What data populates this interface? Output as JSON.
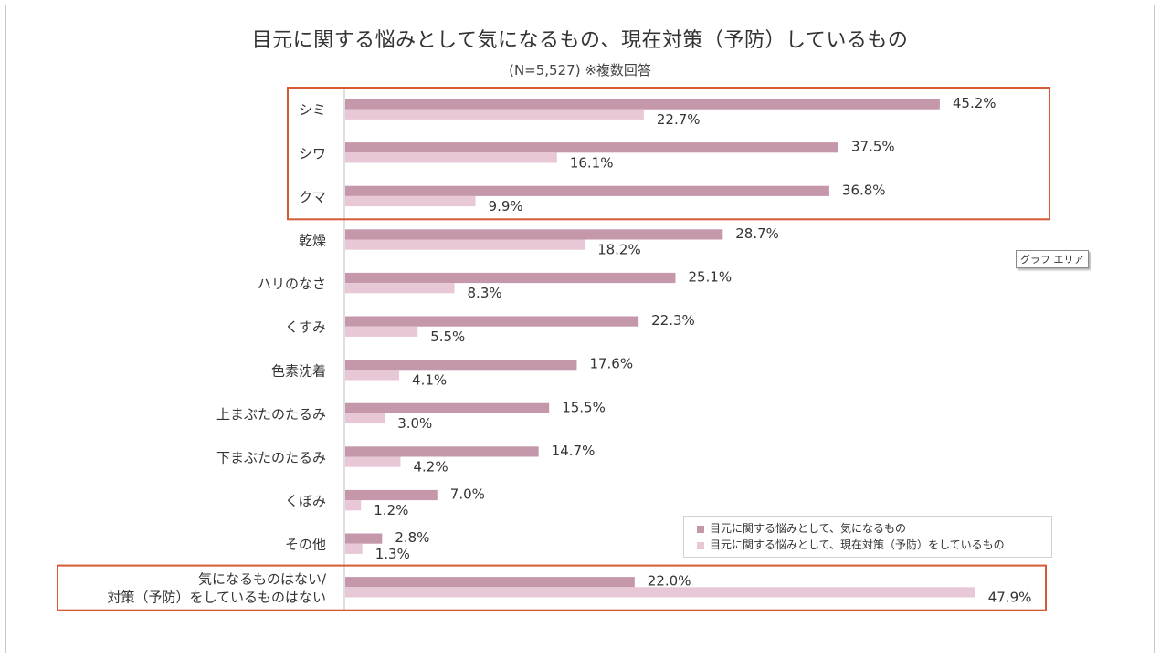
{
  "chart_data": {
    "type": "bar",
    "orientation": "horizontal",
    "title": "目元に関する悩みとして気になるもの、現在対策（予防）しているもの",
    "subtitle": "(N=5,527) ※複数回答",
    "categories": [
      "シミ",
      "シワ",
      "クマ",
      "乾燥",
      "ハリのなさ",
      "くすみ",
      "色素沈着",
      "上まぶたのたるみ",
      "下まぶたのたるみ",
      "くぼみ",
      "その他",
      [
        "気になるものはない/",
        "対策（予防）をしているものはない"
      ]
    ],
    "series": [
      {
        "name": "目元に関する悩みとして、気になるもの",
        "color": "#c497ab",
        "values": [
          45.2,
          37.5,
          36.8,
          28.7,
          25.1,
          22.3,
          17.6,
          15.5,
          14.7,
          7.0,
          2.8,
          22.0
        ]
      },
      {
        "name": "目元に関する悩みとして、現在対策（予防）をしているもの",
        "color": "#e8c8d7",
        "values": [
          22.7,
          16.1,
          9.9,
          18.2,
          8.3,
          5.5,
          4.1,
          3.0,
          4.2,
          1.2,
          1.3,
          47.9
        ]
      }
    ],
    "value_suffix": "%",
    "xlim": [
      0,
      50
    ],
    "legend_position": "bottom-right",
    "highlight_color": "#d55b36",
    "highlighted_groups": [
      [
        0,
        2
      ],
      [
        11,
        11
      ]
    ]
  },
  "ui": {
    "tooltip": "グラフ エリア"
  }
}
